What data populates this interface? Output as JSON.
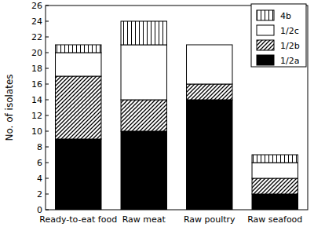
{
  "chart_data": {
    "type": "bar",
    "stacked": true,
    "categories": [
      "Ready-to-eat food",
      "Raw meat",
      "Raw poultry",
      "Raw seafood"
    ],
    "series": [
      {
        "name": "1/2a",
        "color": "#000000",
        "values": [
          9,
          10,
          14,
          2
        ]
      },
      {
        "name": "1/2b",
        "color": "#000000",
        "values": [
          8,
          4,
          2,
          2
        ]
      },
      {
        "name": "1/2c",
        "color": "#ffffff",
        "values": [
          3,
          7,
          5,
          2
        ]
      },
      {
        "name": "4b",
        "color": "#000000",
        "values": [
          1,
          3,
          0,
          1
        ]
      }
    ],
    "y_label": "No. of isolates",
    "ylim": [
      0,
      26
    ],
    "yticks": [
      0,
      2,
      4,
      6,
      8,
      10,
      12,
      14,
      16,
      18,
      20,
      22,
      24,
      26
    ],
    "legend": "top-right"
  }
}
